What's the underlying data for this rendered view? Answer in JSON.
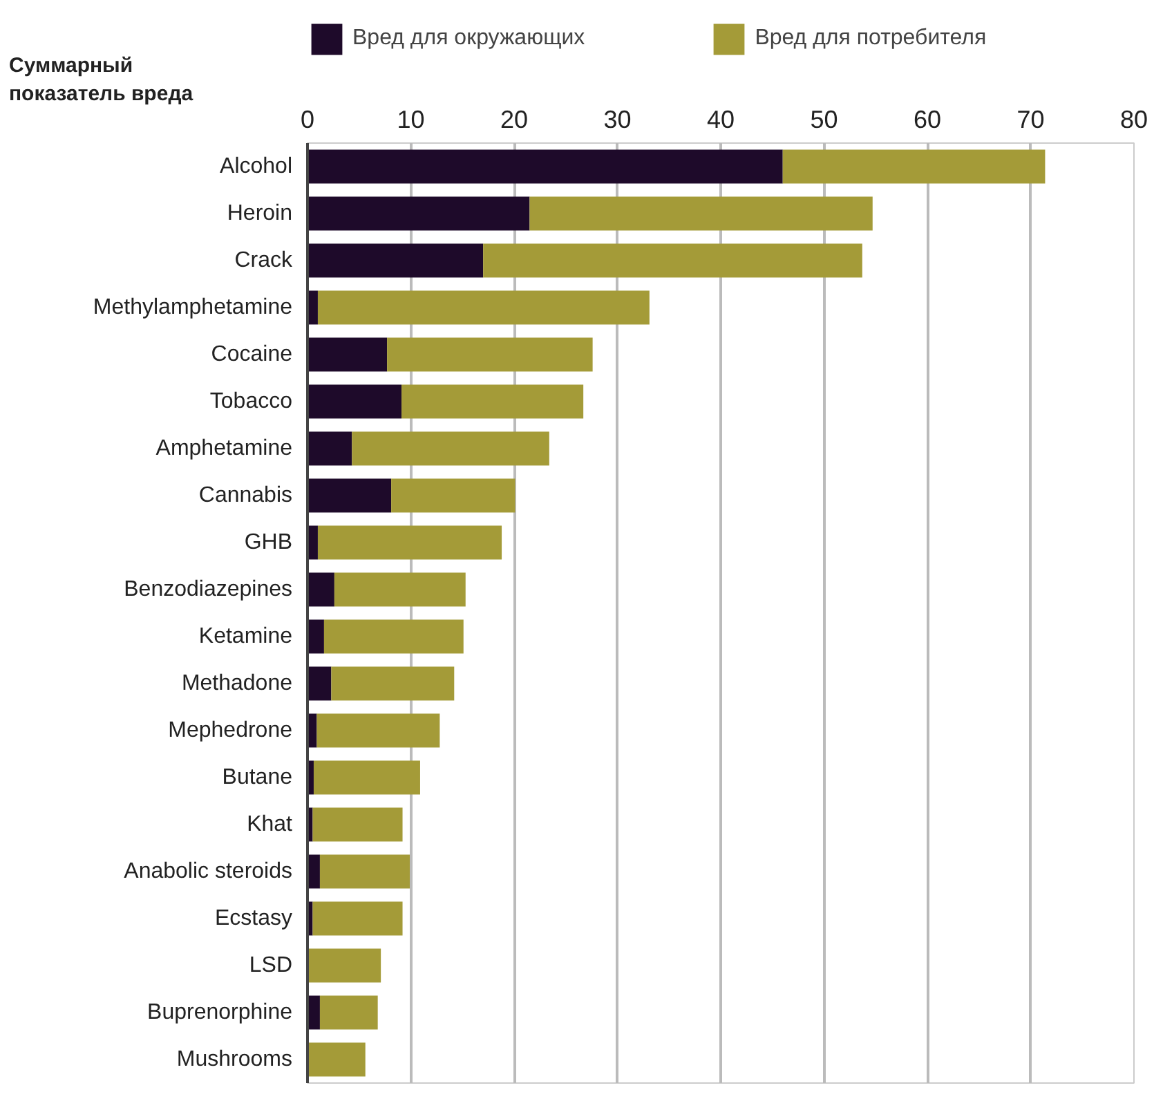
{
  "chart_data": {
    "type": "bar",
    "orientation": "horizontal",
    "stacked": true,
    "xlabel": "Суммарный показатель вреда",
    "categories": [
      "Alcohol",
      "Heroin",
      "Crack",
      "Methylamphetamine",
      "Cocaine",
      "Tobacco",
      "Amphetamine",
      "Cannabis",
      "GHB",
      "Benzodiazepines",
      "Ketamine",
      "Methadone",
      "Mephedrone",
      "Butane",
      "Khat",
      "Anabolic steroids",
      "Ecstasy",
      "LSD",
      "Buprenorphine",
      "Mushrooms"
    ],
    "series": [
      {
        "name": "Вред для окружающих",
        "color": "#1e0a2a",
        "values": [
          46,
          21.5,
          17,
          1,
          7.7,
          9.1,
          4.3,
          8.1,
          1,
          2.6,
          1.6,
          2.3,
          0.9,
          0.6,
          0.5,
          1.2,
          0.5,
          0,
          1.2,
          0
        ]
      },
      {
        "name": "Вред для потребителя",
        "color": "#a49b38",
        "values": [
          25.4,
          33.2,
          36.7,
          32.1,
          19.9,
          17.6,
          19.1,
          12,
          17.8,
          12.7,
          13.5,
          11.9,
          11.9,
          10.3,
          8.7,
          8.7,
          8.7,
          7.1,
          5.6,
          5.6
        ]
      }
    ],
    "xlim": [
      0,
      80
    ],
    "xticks": [
      0,
      10,
      20,
      30,
      40,
      50,
      60,
      70,
      80
    ],
    "grid": "x",
    "legend": "top"
  }
}
